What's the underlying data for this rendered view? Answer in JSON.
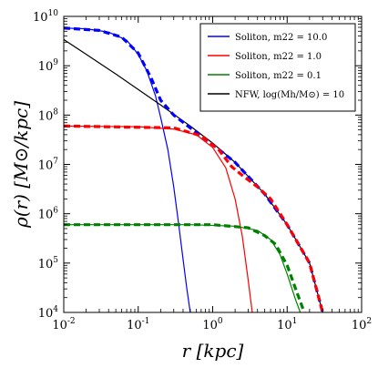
{
  "chart_data": {
    "type": "line",
    "xscale": "log",
    "yscale": "log",
    "xlim": [
      0.01,
      100
    ],
    "ylim": [
      10000,
      10000000000
    ],
    "xlabel": "r [kpc]",
    "ylabel": "ρ(r) [M⊙/kpc]",
    "x_ticks": [
      {
        "value": 0.01,
        "base": "10",
        "exp": "-2"
      },
      {
        "value": 0.1,
        "base": "10",
        "exp": "-1"
      },
      {
        "value": 1,
        "base": "10",
        "exp": "0"
      },
      {
        "value": 10,
        "base": "10",
        "exp": "1"
      },
      {
        "value": 100,
        "base": "10",
        "exp": "2"
      }
    ],
    "y_ticks": [
      {
        "value": 10000,
        "base": "10",
        "exp": "4"
      },
      {
        "value": 100000,
        "base": "10",
        "exp": "5"
      },
      {
        "value": 1000000,
        "base": "10",
        "exp": "6"
      },
      {
        "value": 10000000,
        "base": "10",
        "exp": "7"
      },
      {
        "value": 100000000,
        "base": "10",
        "exp": "8"
      },
      {
        "value": 1000000000,
        "base": "10",
        "exp": "9"
      },
      {
        "value": 10000000000,
        "base": "10",
        "exp": "10"
      }
    ],
    "legend_position": "top-right",
    "series": [
      {
        "name": "Soliton, m22 = 10.0",
        "color": "#0000ff",
        "style": "solid",
        "points": [
          [
            0.01,
            5800000000.0
          ],
          [
            0.02,
            5600000000.0
          ],
          [
            0.04,
            4800000000.0
          ],
          [
            0.07,
            3300000000.0
          ],
          [
            0.1,
            1700000000.0
          ],
          [
            0.13,
            800000000.0
          ],
          [
            0.17,
            250000000.0
          ],
          [
            0.2,
            90000000.0
          ],
          [
            0.25,
            20000000.0
          ],
          [
            0.3,
            3500000.0
          ],
          [
            0.35,
            600000.0
          ],
          [
            0.4,
            120000.0
          ],
          [
            0.45,
            30000.0
          ],
          [
            0.5,
            10000.0
          ]
        ]
      },
      {
        "name": "Soliton, m22 = 1.0",
        "color": "#ff0000",
        "style": "solid",
        "points": [
          [
            0.01,
            60000000.0
          ],
          [
            0.1,
            58000000.0
          ],
          [
            0.3,
            52000000.0
          ],
          [
            0.6,
            40000000.0
          ],
          [
            1.0,
            22000000.0
          ],
          [
            1.5,
            8500000.0
          ],
          [
            2.0,
            2000000.0
          ],
          [
            2.5,
            350000.0
          ],
          [
            3.0,
            45000.0
          ],
          [
            3.4,
            10000.0
          ]
        ]
      },
      {
        "name": "Soliton, m22 = 0.1",
        "color": "#008000",
        "style": "solid",
        "points": [
          [
            0.01,
            600000.0
          ],
          [
            0.5,
            600000.0
          ],
          [
            2.0,
            560000.0
          ],
          [
            4.0,
            460000.0
          ],
          [
            6.0,
            300000.0
          ],
          [
            8.0,
            150000.0
          ],
          [
            10.0,
            60000.0
          ],
          [
            13.0,
            18000.0
          ],
          [
            15.0,
            10000.0
          ]
        ]
      },
      {
        "name": "NFW, log(Mh/M⊙) = 10",
        "color": "#000000",
        "style": "solid",
        "points": [
          [
            0.01,
            3400000000.0
          ],
          [
            0.02,
            1700000000.0
          ],
          [
            0.05,
            680000000.0
          ],
          [
            0.1,
            330000000.0
          ],
          [
            0.2,
            160000000.0
          ],
          [
            0.5,
            60000000.0
          ],
          [
            1.0,
            27000000.0
          ],
          [
            2.0,
            11000000.0
          ],
          [
            5.0,
            2500000.0
          ],
          [
            10.0,
            600000.0
          ],
          [
            20.0,
            100000.0
          ],
          [
            30.0,
            10000.0
          ]
        ]
      },
      {
        "name": "",
        "color": "#0000ff",
        "style": "dashed",
        "points": [
          [
            0.01,
            5800000000.0
          ],
          [
            0.03,
            5200000000.0
          ],
          [
            0.06,
            3800000000.0
          ],
          [
            0.1,
            1800000000.0
          ],
          [
            0.15,
            550000000.0
          ],
          [
            0.2,
            200000000.0
          ],
          [
            0.3,
            100000000.0
          ],
          [
            0.5,
            55000000.0
          ],
          [
            1.0,
            25000000.0
          ],
          [
            2.0,
            11000000.0
          ],
          [
            5.0,
            2500000.0
          ],
          [
            10.0,
            600000.0
          ],
          [
            20.0,
            100000.0
          ],
          [
            30.0,
            10000.0
          ]
        ]
      },
      {
        "name": "",
        "color": "#ff0000",
        "style": "dashed",
        "points": [
          [
            0.01,
            60000000.0
          ],
          [
            0.3,
            55000000.0
          ],
          [
            0.7,
            38000000.0
          ],
          [
            1.2,
            20000000.0
          ],
          [
            1.8,
            9000000.0
          ],
          [
            2.5,
            6000000.0
          ],
          [
            4.0,
            3500000.0
          ],
          [
            6.0,
            2000000.0
          ],
          [
            10.0,
            600000.0
          ],
          [
            20.0,
            100000.0
          ],
          [
            30.0,
            10000.0
          ]
        ]
      },
      {
        "name": "",
        "color": "#008000",
        "style": "dashed",
        "points": [
          [
            0.01,
            600000.0
          ],
          [
            1.0,
            600000.0
          ],
          [
            3.0,
            520000.0
          ],
          [
            5.0,
            360000.0
          ],
          [
            7.0,
            240000.0
          ],
          [
            10.0,
            90000.0
          ],
          [
            13.0,
            30000.0
          ],
          [
            17.0,
            10000.0
          ]
        ]
      }
    ]
  }
}
